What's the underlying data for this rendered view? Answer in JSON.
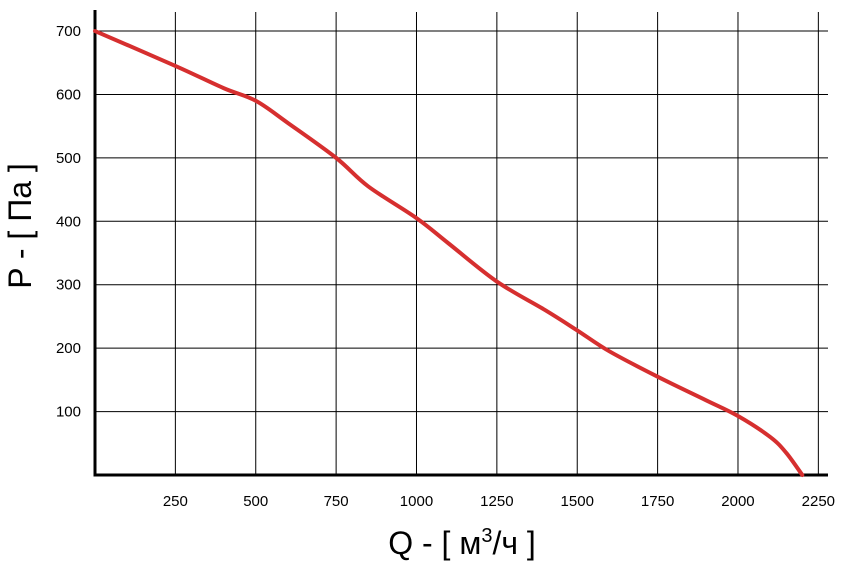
{
  "chart_data": {
    "type": "line",
    "title": "",
    "xlabel": "Q - [ м³/ч ]",
    "xlabel_parts": {
      "before": "Q - [ м",
      "sup": "3",
      "after": "/ч ]"
    },
    "ylabel": "P - [ Па ]",
    "xlim": [
      0,
      2280
    ],
    "ylim": [
      0,
      730
    ],
    "xticks": [
      250,
      500,
      750,
      1000,
      1250,
      1500,
      1750,
      2000,
      2250
    ],
    "xtick_labels": [
      "250",
      "500",
      "750",
      "1000",
      "1250",
      "1500",
      "1750",
      "2000",
      "2250"
    ],
    "yticks": [
      100,
      200,
      300,
      400,
      500,
      600,
      700
    ],
    "ytick_labels": [
      "100",
      "200",
      "300",
      "400",
      "500",
      "600",
      "700"
    ],
    "grid": true,
    "series": [
      {
        "color": "#d62f2f",
        "x": [
          0,
          250,
          400,
          500,
          600,
          750,
          850,
          1000,
          1100,
          1250,
          1400,
          1500,
          1600,
          1750,
          1900,
          2000,
          2100,
          2150,
          2200
        ],
        "y": [
          700,
          645,
          610,
          590,
          555,
          500,
          455,
          405,
          365,
          305,
          260,
          228,
          195,
          155,
          118,
          93,
          60,
          35,
          0
        ]
      }
    ]
  }
}
